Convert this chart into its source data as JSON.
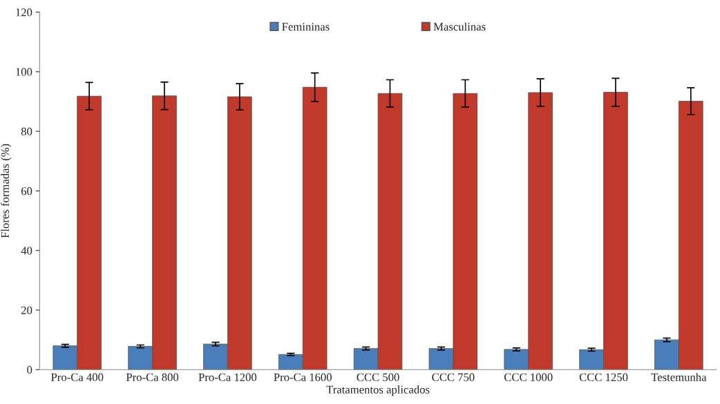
{
  "chart_data": {
    "type": "bar",
    "xlabel": "Tratamentos aplicados",
    "ylabel": "Flores formadas (%)",
    "categories": [
      "Pro-Ca 400",
      "Pro-Ca 800",
      "Pro-Ca 1200",
      "Pro-Ca 1600",
      "CCC 500",
      "CCC 750",
      "CCC 1000",
      "CCC 1250",
      "Testemunha"
    ],
    "series": [
      {
        "name": "Femininas",
        "color": "#4a7ebb",
        "values": [
          8.0,
          7.8,
          8.6,
          5.1,
          7.1,
          7.1,
          6.8,
          6.7,
          10.0
        ],
        "errors": [
          0.5,
          0.5,
          0.6,
          0.4,
          0.5,
          0.5,
          0.5,
          0.5,
          0.6
        ]
      },
      {
        "name": "Masculinas",
        "color": "#c0392b",
        "values": [
          91.8,
          91.9,
          91.6,
          94.8,
          92.7,
          92.7,
          93.0,
          93.1,
          90.1
        ],
        "errors": [
          4.6,
          4.6,
          4.4,
          4.8,
          4.6,
          4.6,
          4.6,
          4.7,
          4.5
        ]
      }
    ],
    "ylim": [
      0,
      120
    ],
    "yticks": [
      0,
      20,
      40,
      60,
      80,
      100,
      120
    ],
    "grid": false,
    "legend": "top"
  }
}
